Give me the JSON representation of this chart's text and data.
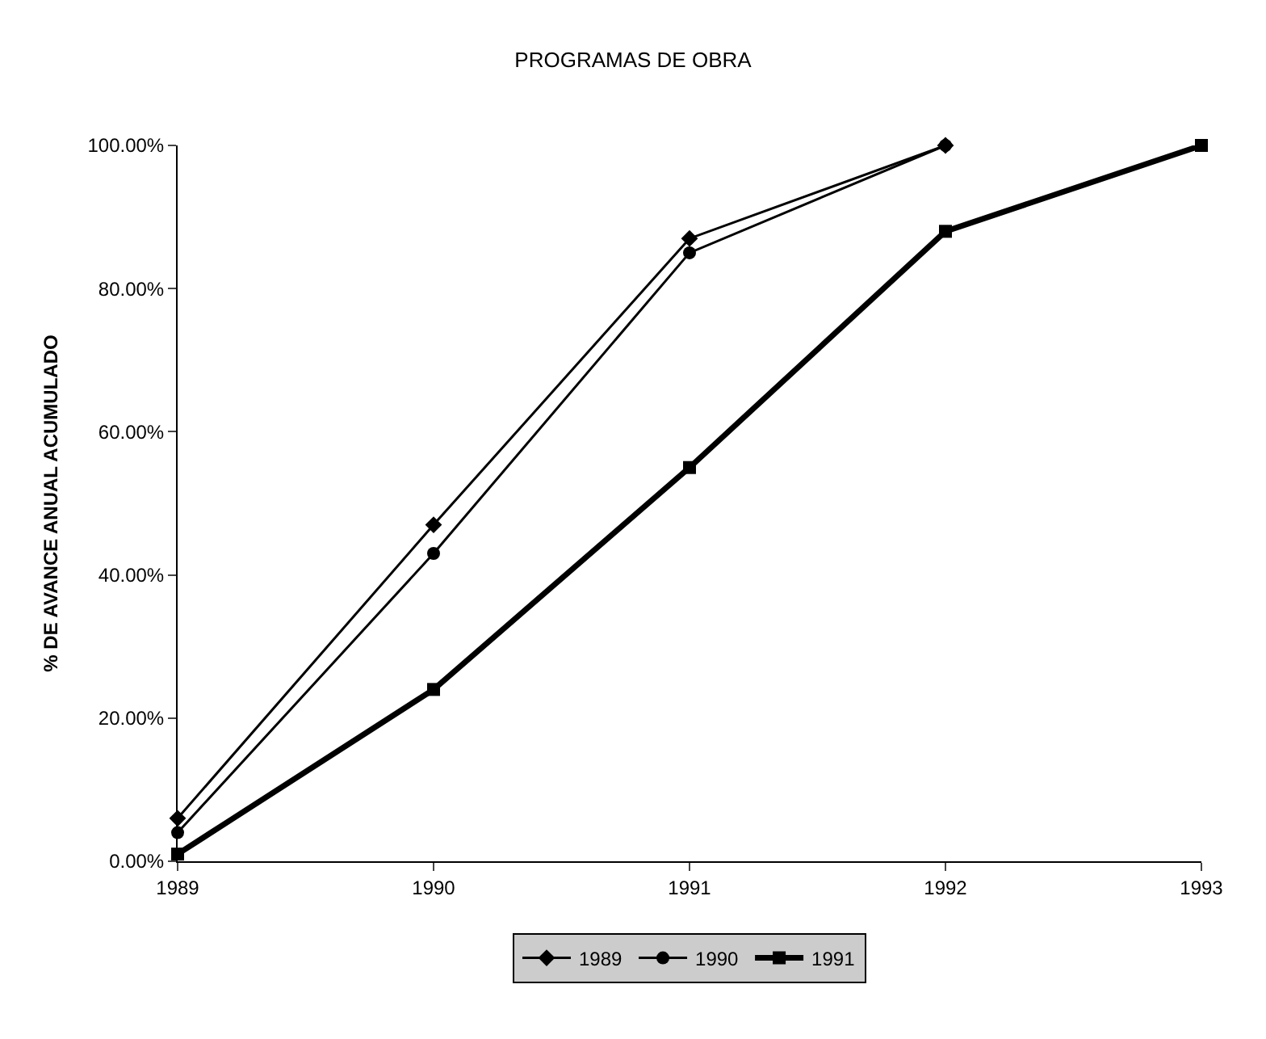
{
  "chart_data": {
    "type": "line",
    "title": "PROGRAMAS DE OBRA",
    "ylabel": "% DE AVANCE ANUAL ACUMULADO",
    "x": [
      1989,
      1990,
      1991,
      1992,
      1993
    ],
    "series": [
      {
        "name": "1989",
        "color": "#000000",
        "marker": "diamond",
        "values": [
          6,
          47,
          87,
          100,
          null
        ]
      },
      {
        "name": "1990",
        "color": "#000000",
        "marker": "circle",
        "values": [
          4,
          43,
          85,
          100,
          null
        ]
      },
      {
        "name": "1991",
        "color": "#000000",
        "marker": "square",
        "values": [
          1,
          24,
          55,
          88,
          100
        ]
      }
    ],
    "xlim": [
      1989,
      1993
    ],
    "xticks": [
      1989,
      1990,
      1991,
      1992,
      1993
    ],
    "ylim": [
      0,
      100
    ],
    "yticks": [
      {
        "value": 0,
        "label": "0.00%"
      },
      {
        "value": 20,
        "label": "20.00%"
      },
      {
        "value": 40,
        "label": "40.00%"
      },
      {
        "value": 60,
        "label": "60.00%"
      },
      {
        "value": 80,
        "label": "80.00%"
      },
      {
        "value": 100,
        "label": "100.00%"
      }
    ],
    "legend": "bottom",
    "line_style": "solid"
  }
}
